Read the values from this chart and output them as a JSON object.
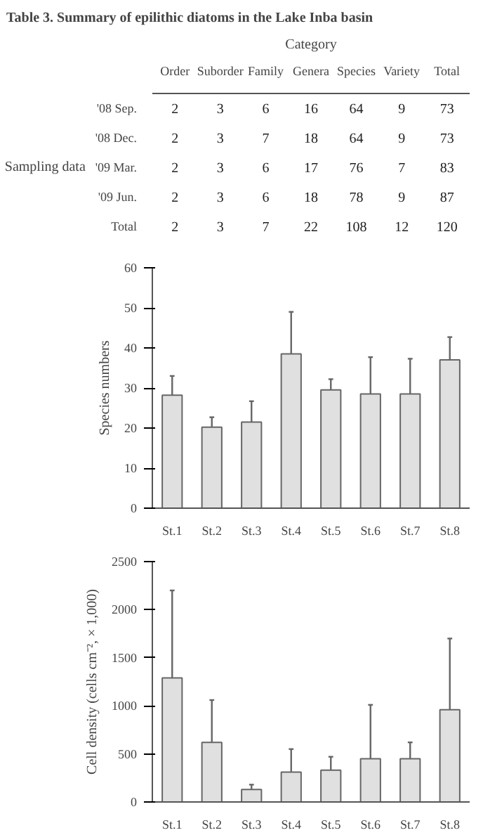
{
  "chart_data": [
    {
      "type": "heatmap",
      "title": "Table 3. Summary of epilithic diatoms in the Lake Inba basin",
      "xlabel": "Category",
      "ylabel": "Sampling data",
      "categories": [
        "Order",
        "Suborder",
        "Family",
        "Genera",
        "Species",
        "Variety",
        "Total"
      ],
      "y_categories": [
        "'08 Sep.",
        "'08 Dec.",
        "'09 Mar.",
        "'09 Jun.",
        "Total"
      ],
      "cells": [
        [
          2,
          3,
          6,
          16,
          64,
          9,
          73
        ],
        [
          2,
          3,
          7,
          18,
          64,
          9,
          73
        ],
        [
          2,
          3,
          6,
          17,
          76,
          7,
          83
        ],
        [
          2,
          3,
          6,
          18,
          78,
          9,
          87
        ],
        [
          2,
          3,
          7,
          22,
          108,
          12,
          120
        ]
      ],
      "data_labels": true
    },
    {
      "type": "bar",
      "ylabel": "Species numbers",
      "categories": [
        "St.1",
        "St.2",
        "St.3",
        "St.4",
        "St.5",
        "St.6",
        "St.7",
        "St.8"
      ],
      "color": "#e0e0e0",
      "values": [
        28.2,
        20.2,
        21.5,
        38.5,
        29.5,
        28.5,
        28.5,
        37
      ],
      "errors": [
        [
          28.2,
          33
        ],
        [
          20.2,
          22.7
        ],
        [
          21.5,
          26.7
        ],
        [
          38.5,
          49
        ],
        [
          29.5,
          32.2
        ],
        [
          28.5,
          37.7
        ],
        [
          28.5,
          37.3
        ],
        [
          37,
          42.7
        ]
      ],
      "ylim": [
        0,
        60
      ],
      "yticks": [
        0,
        10,
        20,
        30,
        40,
        50,
        60
      ],
      "grid": false
    },
    {
      "type": "bar",
      "ylabel": "Cell density (cells cm⁻², × 1,000)",
      "categories": [
        "St.1",
        "St.2",
        "St.3",
        "St.4",
        "St.5",
        "St.6",
        "St.7",
        "St.8"
      ],
      "color": "#e0e0e0",
      "values": [
        1290,
        620,
        130,
        310,
        330,
        450,
        450,
        960
      ],
      "errors": [
        [
          1290,
          2200
        ],
        [
          620,
          1060
        ],
        [
          130,
          180
        ],
        [
          310,
          550
        ],
        [
          330,
          470
        ],
        [
          450,
          1010
        ],
        [
          450,
          620
        ],
        [
          960,
          1700
        ]
      ],
      "ylim": [
        0,
        2500
      ],
      "yticks": [
        0,
        500,
        1000,
        1500,
        2000,
        2500
      ],
      "grid": false
    }
  ]
}
